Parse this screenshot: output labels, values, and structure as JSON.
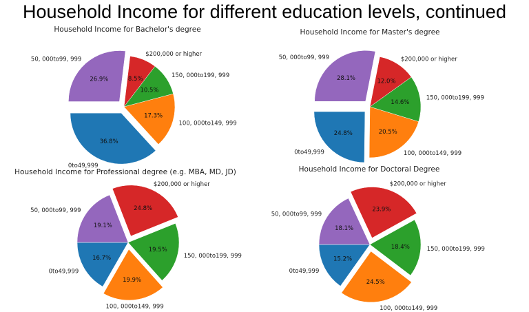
{
  "page_title": "Household Income for different education levels, continued",
  "colors": {
    "0to49,999": "#1f77b4",
    "100,000to149,999": "#ff7f0e",
    "150,000to199,999": "#2ca02c",
    "$200,000 or higher": "#d62728",
    "50,000to99,999": "#9467bd"
  },
  "chart_data": [
    {
      "type": "pie",
      "title": "Household Income for Bachelor's degree",
      "slices": [
        {
          "label": "0to49,999",
          "display": "0to49,999",
          "value": 36.8,
          "pct": "36.8%",
          "exploded": true
        },
        {
          "label": "100,000to149,999",
          "display": "100, 000to149, 999",
          "value": 17.3,
          "pct": "17.3%",
          "exploded": false
        },
        {
          "label": "150,000to199,999",
          "display": "150, 000to199, 999",
          "value": 10.5,
          "pct": "10.5%",
          "exploded": false
        },
        {
          "label": "$200,000 or higher",
          "display": "$200,000 or higher",
          "value": 8.5,
          "pct": "8.5%",
          "exploded": false
        },
        {
          "label": "50,000to99,999",
          "display": "50, 000to99, 999",
          "value": 26.9,
          "pct": "26.9%",
          "exploded": true
        }
      ]
    },
    {
      "type": "pie",
      "title": "Household Income for Master's degree",
      "slices": [
        {
          "label": "0to49,999",
          "display": "0to49,999",
          "value": 24.8,
          "pct": "24.8%",
          "exploded": true
        },
        {
          "label": "100,000to149,999",
          "display": "100, 000to149, 999",
          "value": 20.5,
          "pct": "20.5%",
          "exploded": false
        },
        {
          "label": "150,000to199,999",
          "display": "150, 000to199, 999",
          "value": 14.6,
          "pct": "14.6%",
          "exploded": false
        },
        {
          "label": "$200,000 or higher",
          "display": "$200,000 or higher",
          "value": 12.0,
          "pct": "12.0%",
          "exploded": false
        },
        {
          "label": "50,000to99,999",
          "display": "50, 000to99, 999",
          "value": 28.1,
          "pct": "28.1%",
          "exploded": true
        }
      ]
    },
    {
      "type": "pie",
      "title": "Household Income for Professional degree (e.g. MBA, MD, JD)",
      "slices": [
        {
          "label": "0to49,999",
          "display": "0to49,999",
          "value": 16.7,
          "pct": "16.7%",
          "exploded": false
        },
        {
          "label": "100,000to149,999",
          "display": "100, 000to149, 999",
          "value": 19.9,
          "pct": "19.9%",
          "exploded": true
        },
        {
          "label": "150,000to199,999",
          "display": "150, 000to199, 999",
          "value": 19.5,
          "pct": "19.5%",
          "exploded": false
        },
        {
          "label": "$200,000 or higher",
          "display": "$200,000 or higher",
          "value": 24.8,
          "pct": "24.8%",
          "exploded": true
        },
        {
          "label": "50,000to99,999",
          "display": "50, 000to99, 999",
          "value": 19.1,
          "pct": "19.1%",
          "exploded": false
        }
      ]
    },
    {
      "type": "pie",
      "title": "Household Income for Doctoral Degree",
      "slices": [
        {
          "label": "0to49,999",
          "display": "0to49,999",
          "value": 15.2,
          "pct": "15.2%",
          "exploded": false
        },
        {
          "label": "100,000to149,999",
          "display": "100, 000to149, 999",
          "value": 24.5,
          "pct": "24.5%",
          "exploded": true
        },
        {
          "label": "150,000to199,999",
          "display": "150, 000to199, 999",
          "value": 18.4,
          "pct": "18.4%",
          "exploded": false
        },
        {
          "label": "$200,000 or higher",
          "display": "$200,000 or higher",
          "value": 23.9,
          "pct": "23.9%",
          "exploded": true
        },
        {
          "label": "50,000to99,999",
          "display": "50, 000to99, 999",
          "value": 18.1,
          "pct": "18.1%",
          "exploded": false
        }
      ]
    }
  ]
}
